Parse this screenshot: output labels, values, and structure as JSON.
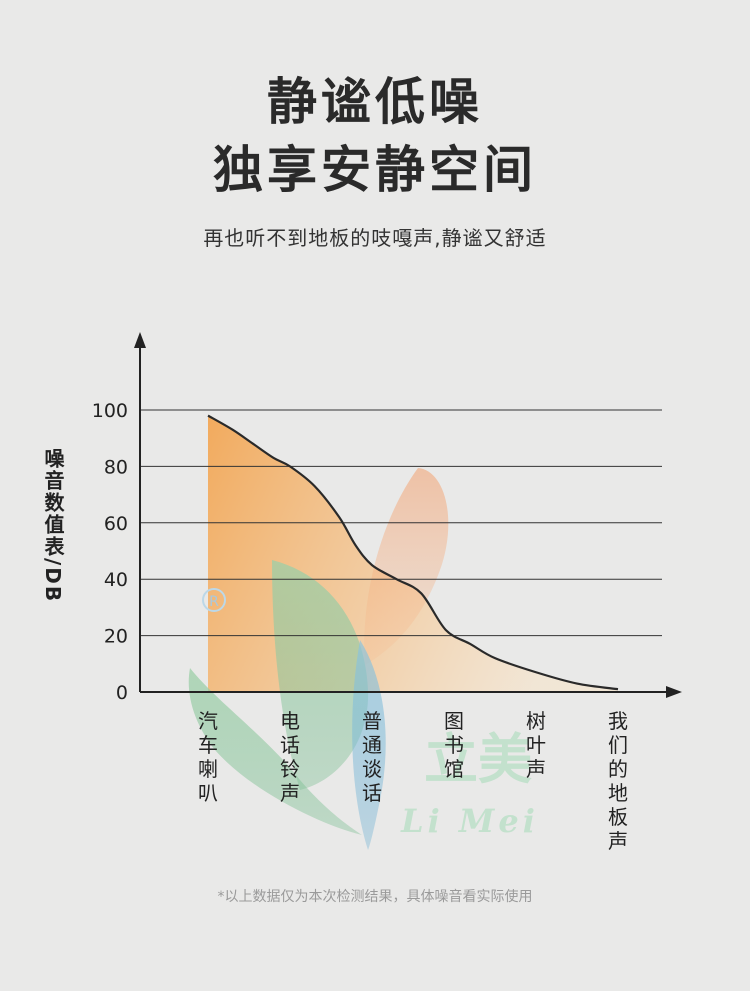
{
  "heading": {
    "line1": "静谧低噪",
    "line2": "独享安静空间",
    "subtitle": "再也听不到地板的吱嘎声,静谧又舒适"
  },
  "footnote": "*以上数据仅为本次检测结果，具体噪音看实际使用",
  "watermark": {
    "text_cn": "立美",
    "text_en": "Li Mei",
    "registered_mark": "R"
  },
  "colors": {
    "fill_top": "#f2a756",
    "fill_bottom": "#f6d7b0",
    "line": "#2a2a2a",
    "grid": "#333333",
    "watermark_green": "#8fc9a0",
    "watermark_blue": "#7ab8d8",
    "watermark_orange": "#f4a578"
  },
  "chart_data": {
    "type": "area",
    "ylabel": "噪音数值表/DB",
    "ylim": [
      0,
      100
    ],
    "yticks": [
      "100",
      "80",
      "60",
      "40",
      "20",
      "0"
    ],
    "grid": true,
    "categories": [
      "汽车喇叭",
      "电话铃声",
      "普通谈话",
      "图书馆",
      "树叶声",
      "我们的地板声"
    ],
    "curve": {
      "x": [
        0,
        0.3,
        0.55,
        0.8,
        1.0,
        1.3,
        1.6,
        1.8,
        2.0,
        2.3,
        2.6,
        2.9,
        3.2,
        3.5,
        4.0,
        4.5,
        5.0
      ],
      "y": [
        98,
        93,
        88,
        83,
        80,
        73,
        62,
        52,
        45,
        40,
        35,
        22,
        17,
        12,
        7,
        3,
        1
      ]
    }
  }
}
